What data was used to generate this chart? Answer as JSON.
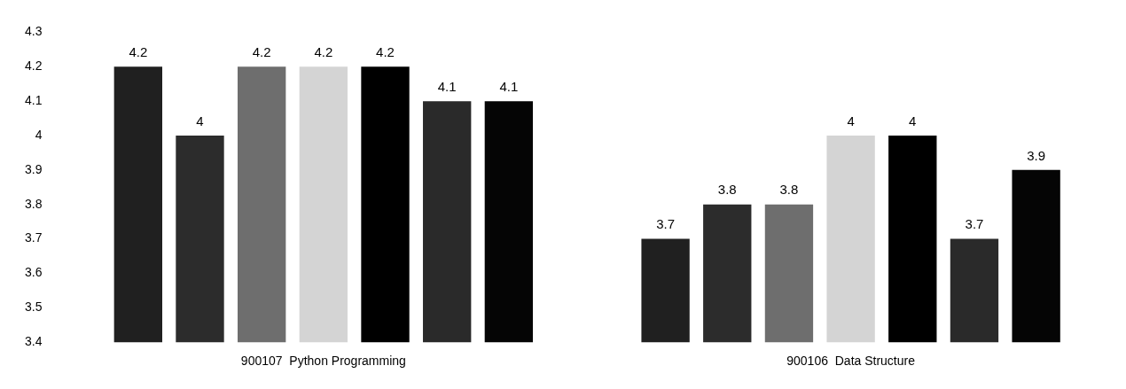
{
  "chart_data": {
    "type": "bar",
    "categories": [
      "900107  Python Programming",
      "900106  Data Structure"
    ],
    "series": [
      {
        "color": "#202020",
        "values": [
          4.2,
          3.7
        ]
      },
      {
        "color": "#2c2c2c",
        "values": [
          4,
          3.8
        ]
      },
      {
        "color": "#6e6e6e",
        "values": [
          4.2,
          3.8
        ]
      },
      {
        "color": "#d4d4d4",
        "values": [
          4.2,
          4
        ]
      },
      {
        "color": "#000000",
        "values": [
          4.2,
          4
        ]
      },
      {
        "color": "#2a2a2a",
        "values": [
          4.1,
          3.7
        ]
      },
      {
        "color": "#050505",
        "values": [
          4.1,
          3.9
        ]
      }
    ],
    "ylim": [
      3.4,
      4.3
    ],
    "yticks": [
      3.4,
      3.5,
      3.6,
      3.7,
      3.8,
      3.9,
      4,
      4.1,
      4.2,
      4.3
    ],
    "grid": false,
    "legend": false,
    "data_labels": true
  }
}
